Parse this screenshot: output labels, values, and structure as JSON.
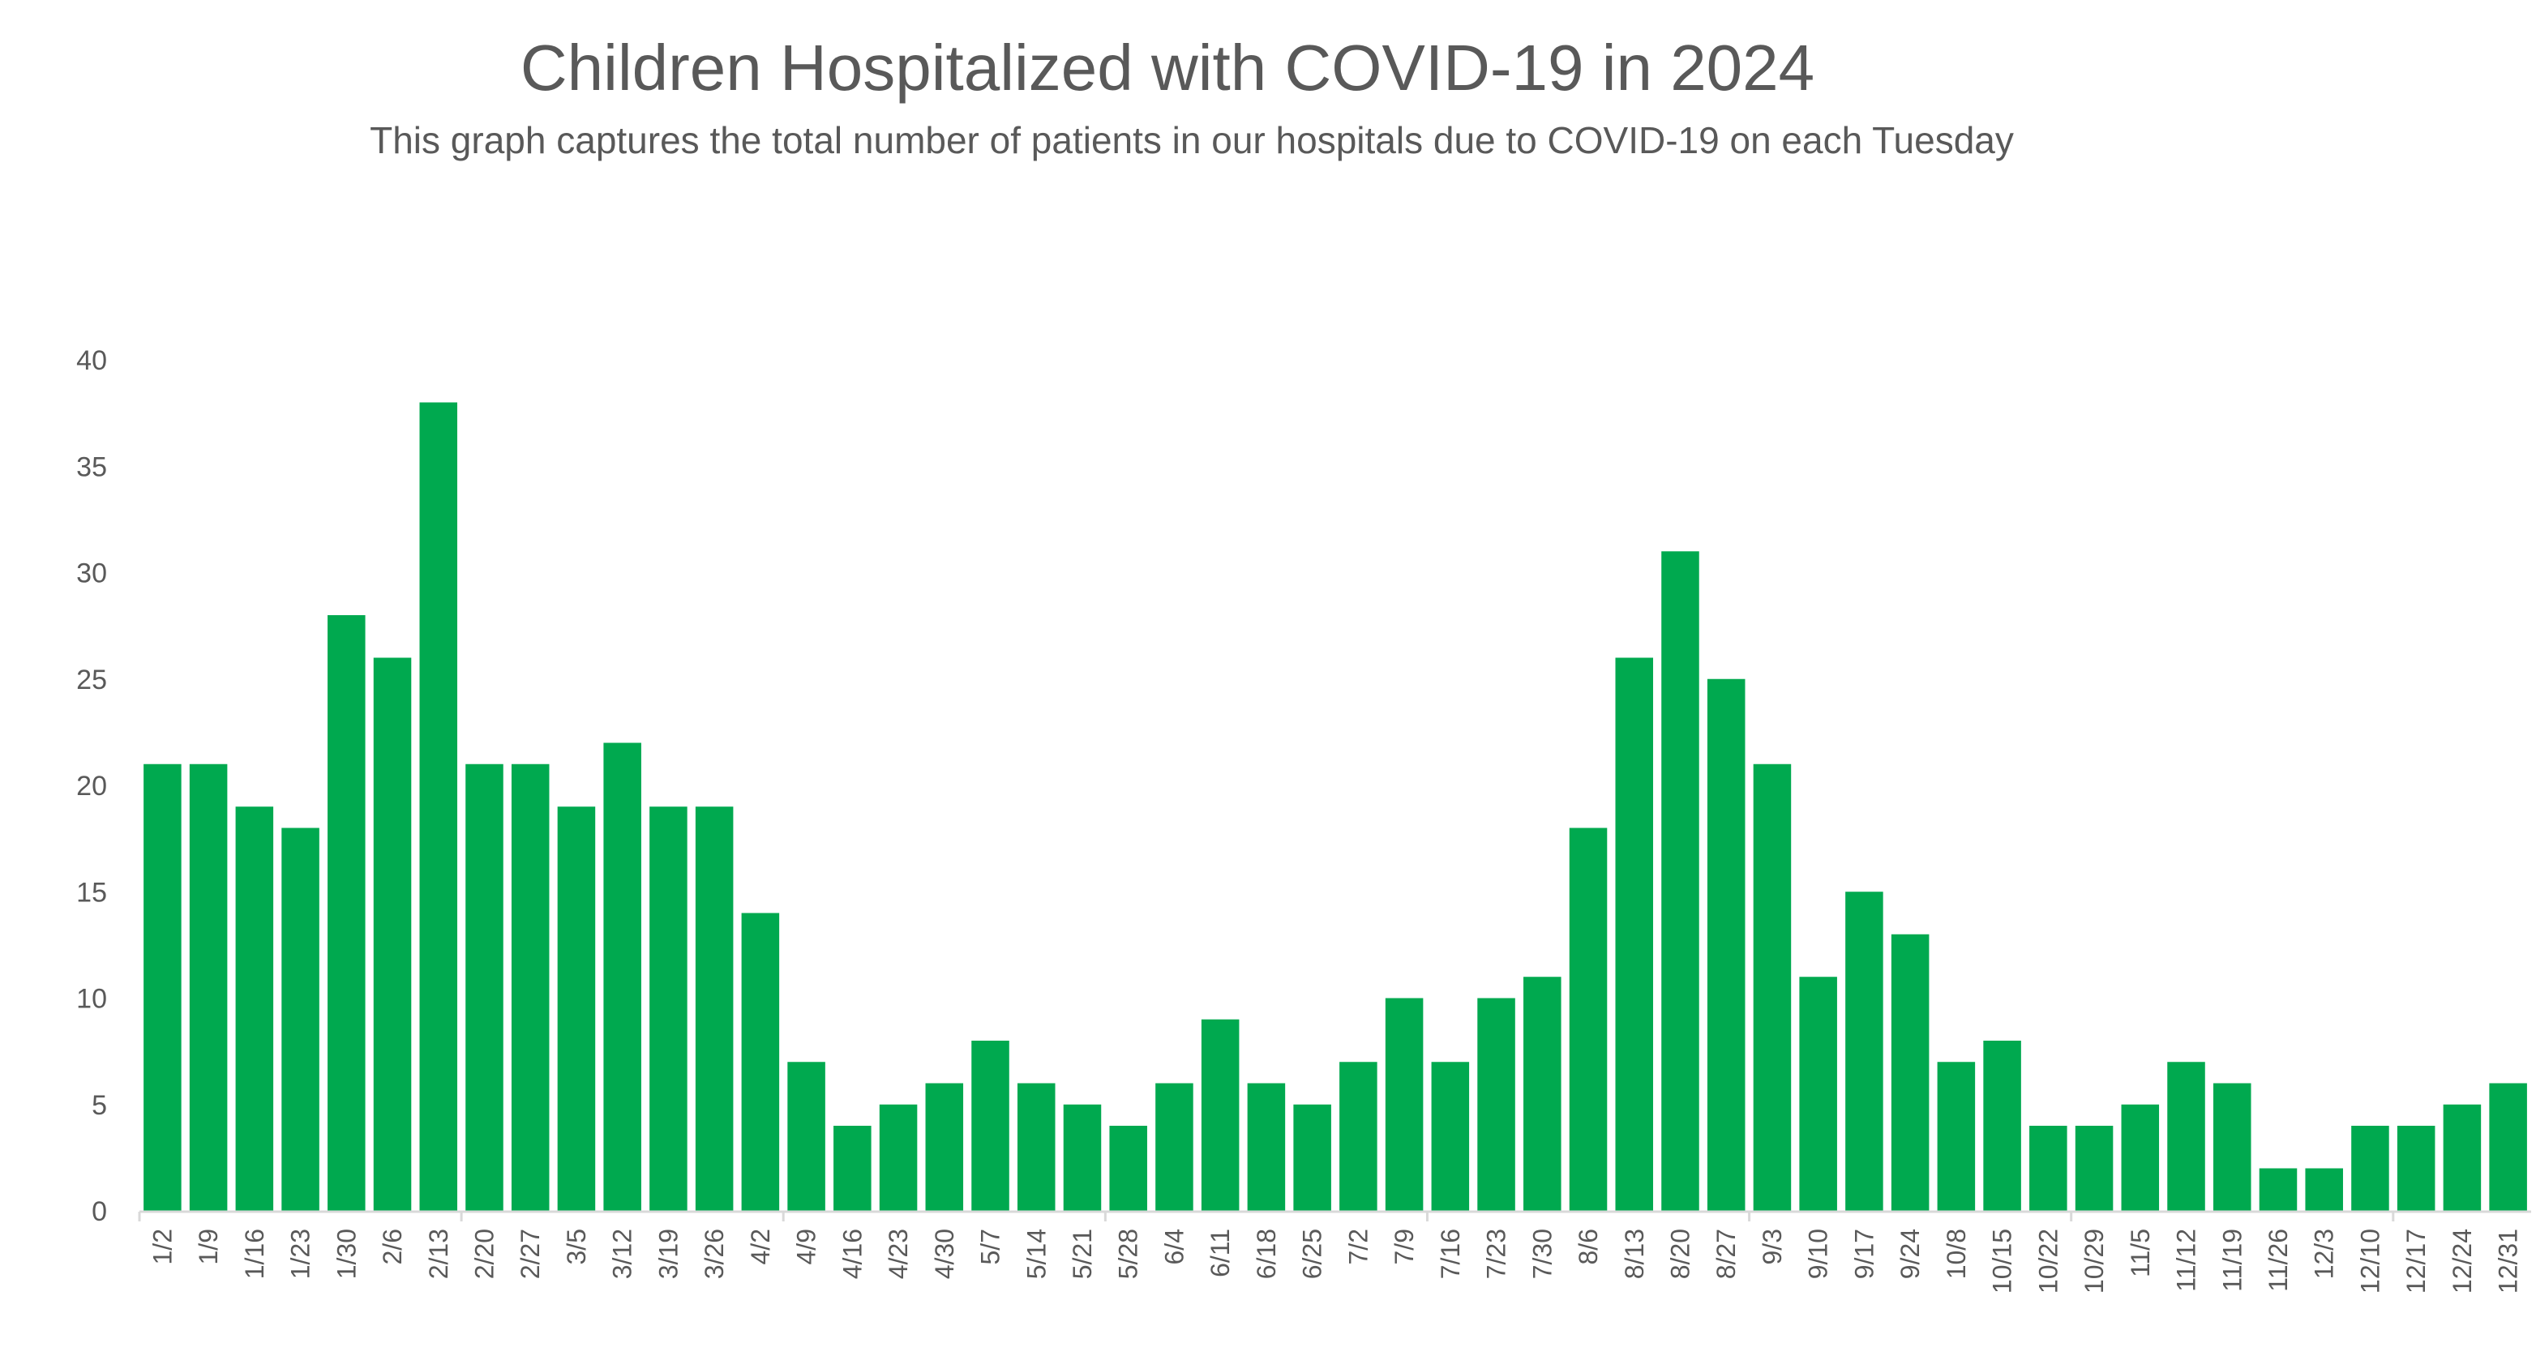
{
  "chart_data": {
    "type": "bar",
    "title": "Children Hospitalized with COVID-19 in 2024",
    "subtitle": "This graph captures the total number of patients in our hospitals due to COVID-19 on each Tuesday",
    "xlabel": "",
    "ylabel": "",
    "ylim": [
      0,
      40
    ],
    "yticks": [
      0,
      5,
      10,
      15,
      20,
      25,
      30,
      35,
      40
    ],
    "grid": false,
    "legend": "none",
    "bar_color": "#00A94F",
    "categories": [
      "1/2",
      "1/9",
      "1/16",
      "1/23",
      "1/30",
      "2/6",
      "2/13",
      "2/20",
      "2/27",
      "3/5",
      "3/12",
      "3/19",
      "3/26",
      "4/2",
      "4/9",
      "4/16",
      "4/23",
      "4/30",
      "5/7",
      "5/14",
      "5/21",
      "5/28",
      "6/4",
      "6/11",
      "6/18",
      "6/25",
      "7/2",
      "7/9",
      "7/16",
      "7/23",
      "7/30",
      "8/6",
      "8/13",
      "8/20",
      "8/27",
      "9/3",
      "9/10",
      "9/17",
      "9/24",
      "10/8",
      "10/15",
      "10/22",
      "10/29",
      "11/5",
      "11/12",
      "11/19",
      "11/26",
      "12/3",
      "12/10",
      "12/17",
      "12/24",
      "12/31"
    ],
    "values": [
      21,
      21,
      19,
      18,
      28,
      26,
      38,
      21,
      21,
      19,
      22,
      19,
      19,
      14,
      7,
      4,
      5,
      6,
      8,
      6,
      5,
      4,
      6,
      9,
      6,
      5,
      7,
      10,
      7,
      10,
      11,
      18,
      26,
      31,
      25,
      21,
      11,
      15,
      13,
      7,
      8,
      4,
      4,
      5,
      7,
      6,
      2,
      2,
      4,
      4,
      5,
      6
    ]
  }
}
